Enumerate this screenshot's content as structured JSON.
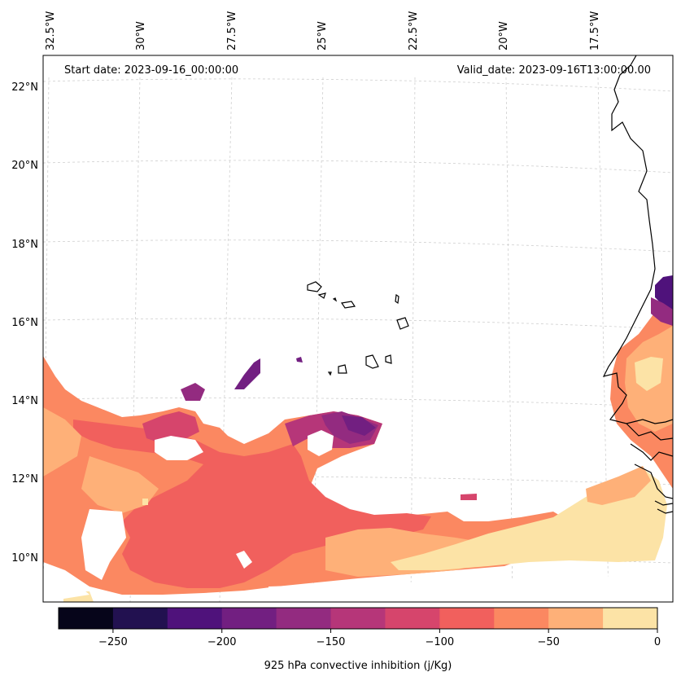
{
  "map": {
    "start_date": "Start date: 2023-09-16_00:00:00",
    "valid_date": "Valid_date: 2023-09-16T13:00:00.00",
    "lon_labels": [
      "32.5°W",
      "30°W",
      "27.5°W",
      "25°W",
      "22.5°W",
      "20°W",
      "17.5°W"
    ],
    "lat_labels": [
      "22°N",
      "20°N",
      "18°N",
      "16°N",
      "14°N",
      "12°N",
      "10°N"
    ],
    "extent": {
      "lon_min": -33,
      "lon_max": -16,
      "lat_min": 9,
      "lat_max": 22.7
    }
  },
  "colorbar": {
    "label": "925 hPa convective inhibition (j/Kg)",
    "tick_labels": [
      "−250",
      "−200",
      "−150",
      "−100",
      "−50",
      "0"
    ],
    "levels": [
      -275,
      -250,
      -225,
      -200,
      -175,
      -150,
      -125,
      -100,
      -75,
      -50,
      -25,
      0
    ],
    "colors": [
      "#06051a",
      "#221150",
      "#4f127b",
      "#721f81",
      "#932b80",
      "#b63679",
      "#d6456c",
      "#f1605d",
      "#fb8861",
      "#feb078",
      "#fce3a6"
    ]
  }
}
